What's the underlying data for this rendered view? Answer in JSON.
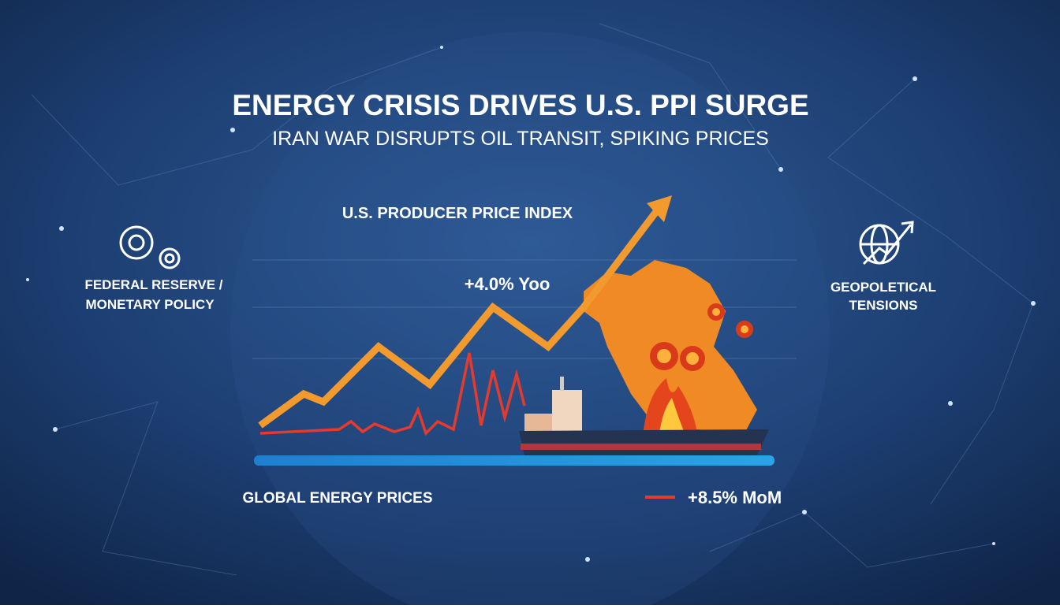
{
  "title": "ENERGY CRISIS DRIVES U.S. PPI SURGE",
  "subtitle": "IRAN WAR DISRUPTS OIL TRANSIT, SPIKING PRICES",
  "chart_label": "U.S. PRODUCER PRICE INDEX",
  "annotation": "+4.0% Yoo",
  "left_panel": {
    "lines": [
      "FEDERAL RESERVE /",
      "MONETARY POLICY"
    ]
  },
  "right_panel": {
    "lines": [
      "GEOPOLETICAL",
      "TENSIONS"
    ]
  },
  "bottom_label": "GLOBAL ENERGY PRICES",
  "legend_label": "+8.5% MoM"
}
